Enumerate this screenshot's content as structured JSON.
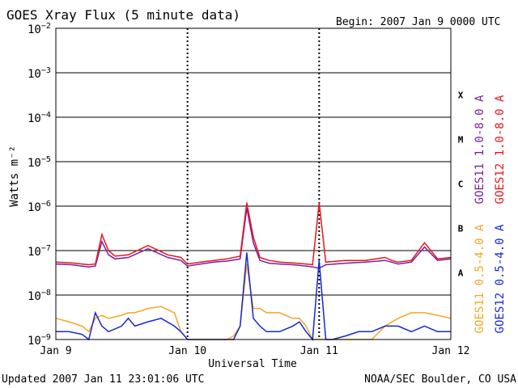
{
  "header": {
    "title": "GOES Xray Flux (5 minute data)",
    "begin": "Begin:  2007 Jan 9 0000 UTC"
  },
  "footer": {
    "updated": "Updated 2007 Jan 11 23:01:06 UTC",
    "source": "NOAA/SEC Boulder, CO USA"
  },
  "colors": {
    "goes11_long": "#7b1fa2",
    "goes12_long": "#e8151b",
    "goes11_short": "#f5a623",
    "goes12_short": "#1428d2"
  },
  "chart_data": {
    "type": "line",
    "title": "GOES Xray Flux (5 minute data)",
    "xlabel": "Universal Time",
    "ylabel": "Watts m⁻²",
    "y_scale": "log",
    "ylim": [
      1e-09,
      0.01
    ],
    "y_ticks": [
      {
        "base": "10",
        "exp": "−2",
        "value": 0.01
      },
      {
        "base": "10",
        "exp": "−3",
        "value": 0.001
      },
      {
        "base": "10",
        "exp": "−4",
        "value": 0.0001
      },
      {
        "base": "10",
        "exp": "−5",
        "value": 1e-05
      },
      {
        "base": "10",
        "exp": "−6",
        "value": 1e-06
      },
      {
        "base": "10",
        "exp": "−7",
        "value": 1e-07
      },
      {
        "base": "10",
        "exp": "−8",
        "value": 1e-08
      },
      {
        "base": "10",
        "exp": "−9",
        "value": 1e-09
      }
    ],
    "x_ticks": [
      "Jan 9",
      "Jan 10",
      "Jan 11",
      "Jan 12"
    ],
    "flare_classes": [
      {
        "label": "X",
        "value": 0.000316
      },
      {
        "label": "M",
        "value": 3.16e-05
      },
      {
        "label": "C",
        "value": 3.16e-06
      },
      {
        "label": "B",
        "value": 3.16e-07
      },
      {
        "label": "A",
        "value": 3.16e-08
      }
    ],
    "grid": true,
    "legend_position": "right",
    "series": [
      {
        "name": "GOES11 1.0-8.0 A",
        "color": "#7b1fa2",
        "x_days": [
          0,
          0.12,
          0.25,
          0.3,
          0.35,
          0.4,
          0.45,
          0.55,
          0.7,
          0.85,
          0.95,
          1.0,
          1.1,
          1.2,
          1.3,
          1.4,
          1.45,
          1.5,
          1.55,
          1.62,
          1.7,
          1.8,
          1.9,
          1.95,
          2.0,
          2.05,
          2.2,
          2.35,
          2.5,
          2.55,
          2.6,
          2.7,
          2.8,
          2.9,
          3.0
        ],
        "y": [
          5e-08,
          4.8e-08,
          4.3e-08,
          4.5e-08,
          1.6e-07,
          8e-08,
          6.5e-08,
          7e-08,
          1.1e-07,
          7e-08,
          6e-08,
          4.5e-08,
          5e-08,
          5.5e-08,
          5.8e-08,
          6.5e-08,
          9e-07,
          1.5e-07,
          6e-08,
          5.2e-08,
          5e-08,
          4.8e-08,
          4.5e-08,
          4.3e-08,
          4e-08,
          4.8e-08,
          5.2e-08,
          5.5e-08,
          6e-08,
          5.5e-08,
          5e-08,
          5.5e-08,
          1.2e-07,
          6e-08,
          6.5e-08
        ]
      },
      {
        "name": "GOES12 1.0-8.0 A",
        "color": "#e8151b",
        "x_days": [
          0,
          0.12,
          0.25,
          0.3,
          0.35,
          0.4,
          0.45,
          0.55,
          0.7,
          0.85,
          0.95,
          1.0,
          1.1,
          1.2,
          1.3,
          1.4,
          1.45,
          1.5,
          1.55,
          1.62,
          1.7,
          1.8,
          1.9,
          1.95,
          2.0,
          2.05,
          2.2,
          2.35,
          2.5,
          2.55,
          2.6,
          2.7,
          2.8,
          2.9,
          3.0
        ],
        "y": [
          5.5e-08,
          5.3e-08,
          4.8e-08,
          5e-08,
          2.3e-07,
          1e-07,
          7.5e-08,
          8e-08,
          1.3e-07,
          8e-08,
          7e-08,
          5e-08,
          5.5e-08,
          6e-08,
          6.5e-08,
          7.5e-08,
          1.2e-06,
          2e-07,
          7e-08,
          6e-08,
          5.5e-08,
          5.3e-08,
          5e-08,
          4.8e-08,
          1.2e-06,
          5.5e-08,
          6e-08,
          6e-08,
          7e-08,
          6e-08,
          5.5e-08,
          6e-08,
          1.5e-07,
          6.5e-08,
          7e-08
        ]
      },
      {
        "name": "GOES11 0.5-4.0 A",
        "color": "#f5a623",
        "x_days": [
          0,
          0.1,
          0.2,
          0.25,
          0.3,
          0.35,
          0.4,
          0.5,
          0.55,
          0.6,
          0.7,
          0.8,
          0.9,
          0.95,
          1.0,
          1.1,
          1.2,
          1.3,
          1.35,
          1.4,
          1.45,
          1.5,
          1.55,
          1.6,
          1.7,
          1.8,
          1.85,
          1.9,
          1.95,
          2.0,
          2.1,
          2.2,
          2.3,
          2.4,
          2.5,
          2.6,
          2.7,
          2.8,
          2.9,
          3.0
        ],
        "y": [
          3e-09,
          2.5e-09,
          2e-09,
          1.5e-09,
          3e-09,
          3.5e-09,
          3e-09,
          3.5e-09,
          4e-09,
          4e-09,
          5e-09,
          5.5e-09,
          4e-09,
          1.5e-09,
          1e-09,
          1e-09,
          1e-09,
          1e-09,
          1.2e-09,
          2e-09,
          5e-08,
          5e-09,
          5e-09,
          4e-09,
          4e-09,
          3e-09,
          3e-09,
          2e-09,
          1e-09,
          1e-09,
          1e-09,
          1e-09,
          1e-09,
          1e-09,
          2e-09,
          3e-09,
          4e-09,
          4e-09,
          3.5e-09,
          3e-09
        ]
      },
      {
        "name": "GOES12 0.5-4.0 A",
        "color": "#1428d2",
        "x_days": [
          0,
          0.1,
          0.2,
          0.25,
          0.3,
          0.35,
          0.4,
          0.5,
          0.55,
          0.6,
          0.7,
          0.8,
          0.9,
          0.95,
          1.0,
          1.1,
          1.2,
          1.3,
          1.35,
          1.4,
          1.45,
          1.5,
          1.55,
          1.6,
          1.7,
          1.8,
          1.85,
          1.9,
          1.95,
          2.0,
          2.05,
          2.1,
          2.2,
          2.3,
          2.4,
          2.5,
          2.6,
          2.7,
          2.8,
          2.9,
          3.0
        ],
        "y": [
          1.5e-09,
          1.5e-09,
          1.3e-09,
          1e-09,
          4e-09,
          2e-09,
          1.5e-09,
          2e-09,
          3e-09,
          2e-09,
          2.5e-09,
          3e-09,
          2e-09,
          1.5e-09,
          1e-09,
          1e-09,
          1e-09,
          1e-09,
          1e-09,
          2e-09,
          9e-08,
          3e-09,
          2e-09,
          1.5e-09,
          1.5e-09,
          2e-09,
          2.5e-09,
          1.5e-09,
          1e-09,
          6e-08,
          1e-09,
          1e-09,
          1.2e-09,
          1.5e-09,
          1.5e-09,
          2e-09,
          2e-09,
          1.5e-09,
          2e-09,
          1.5e-09,
          1.5e-09
        ]
      }
    ]
  }
}
